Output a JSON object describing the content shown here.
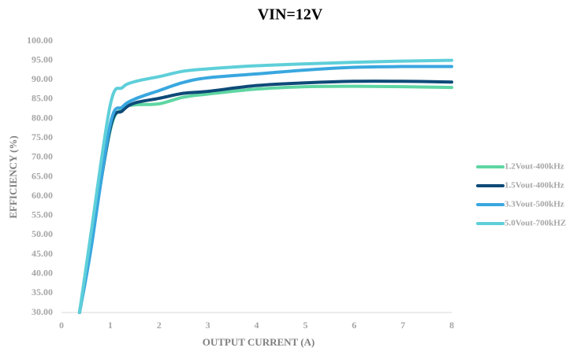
{
  "chart_data": {
    "type": "line",
    "title": "VIN=12V",
    "x_label": "OUTPUT CURRENT (A)",
    "y_label": "EFFICIENCY (%)",
    "x": [
      0.37,
      0.6,
      1,
      1.25,
      1.5,
      2,
      2.5,
      3,
      4,
      5,
      6,
      7,
      8
    ],
    "series": [
      {
        "name": "1.2Vout-400kHz",
        "color": "#5fd6a2",
        "values": [
          30,
          48,
          77,
          82.5,
          83.5,
          83.8,
          85.5,
          86.3,
          87.6,
          88.2,
          88.3,
          88.2,
          88.0
        ]
      },
      {
        "name": "1.5Vout-400kHz",
        "color": "#0e4a78",
        "values": [
          30,
          47,
          77.5,
          82,
          84,
          85.2,
          86.5,
          87,
          88.5,
          89.2,
          89.6,
          89.6,
          89.4
        ]
      },
      {
        "name": "3.3Vout-500kHz",
        "color": "#39a7df",
        "values": [
          30,
          46,
          78.5,
          83,
          85,
          87.2,
          89.3,
          90.5,
          91.5,
          92.5,
          93.2,
          93.4,
          93.4
        ]
      },
      {
        "name": "5.0Vout-700kHZ",
        "color": "#5ecfd9",
        "values": [
          30,
          50,
          83.5,
          88,
          89.5,
          90.8,
          92.2,
          92.8,
          93.6,
          94.1,
          94.5,
          94.8,
          95.0
        ]
      }
    ],
    "xlim": [
      0,
      8
    ],
    "xticks": [
      0,
      1,
      2,
      3,
      4,
      5,
      6,
      7,
      8
    ],
    "ylim": [
      30,
      100
    ],
    "yticks": [
      {
        "value": 30,
        "label": "30.00"
      },
      {
        "value": 35,
        "label": "35.00"
      },
      {
        "value": 40,
        "label": "40.00"
      },
      {
        "value": 45,
        "label": "45.00"
      },
      {
        "value": 50,
        "label": "50.00"
      },
      {
        "value": 55,
        "label": "55.00"
      },
      {
        "value": 60,
        "label": "60.00"
      },
      {
        "value": 65,
        "label": "65.00"
      },
      {
        "value": 70,
        "label": "70.00"
      },
      {
        "value": 75,
        "label": "75.00"
      },
      {
        "value": 80,
        "label": "80.00"
      },
      {
        "value": 85,
        "label": "85.00"
      },
      {
        "value": 90,
        "label": "90.00"
      },
      {
        "value": 95,
        "label": "95.00"
      },
      {
        "value": 100,
        "label": "100.00"
      }
    ],
    "grid": false,
    "legend": "right"
  }
}
